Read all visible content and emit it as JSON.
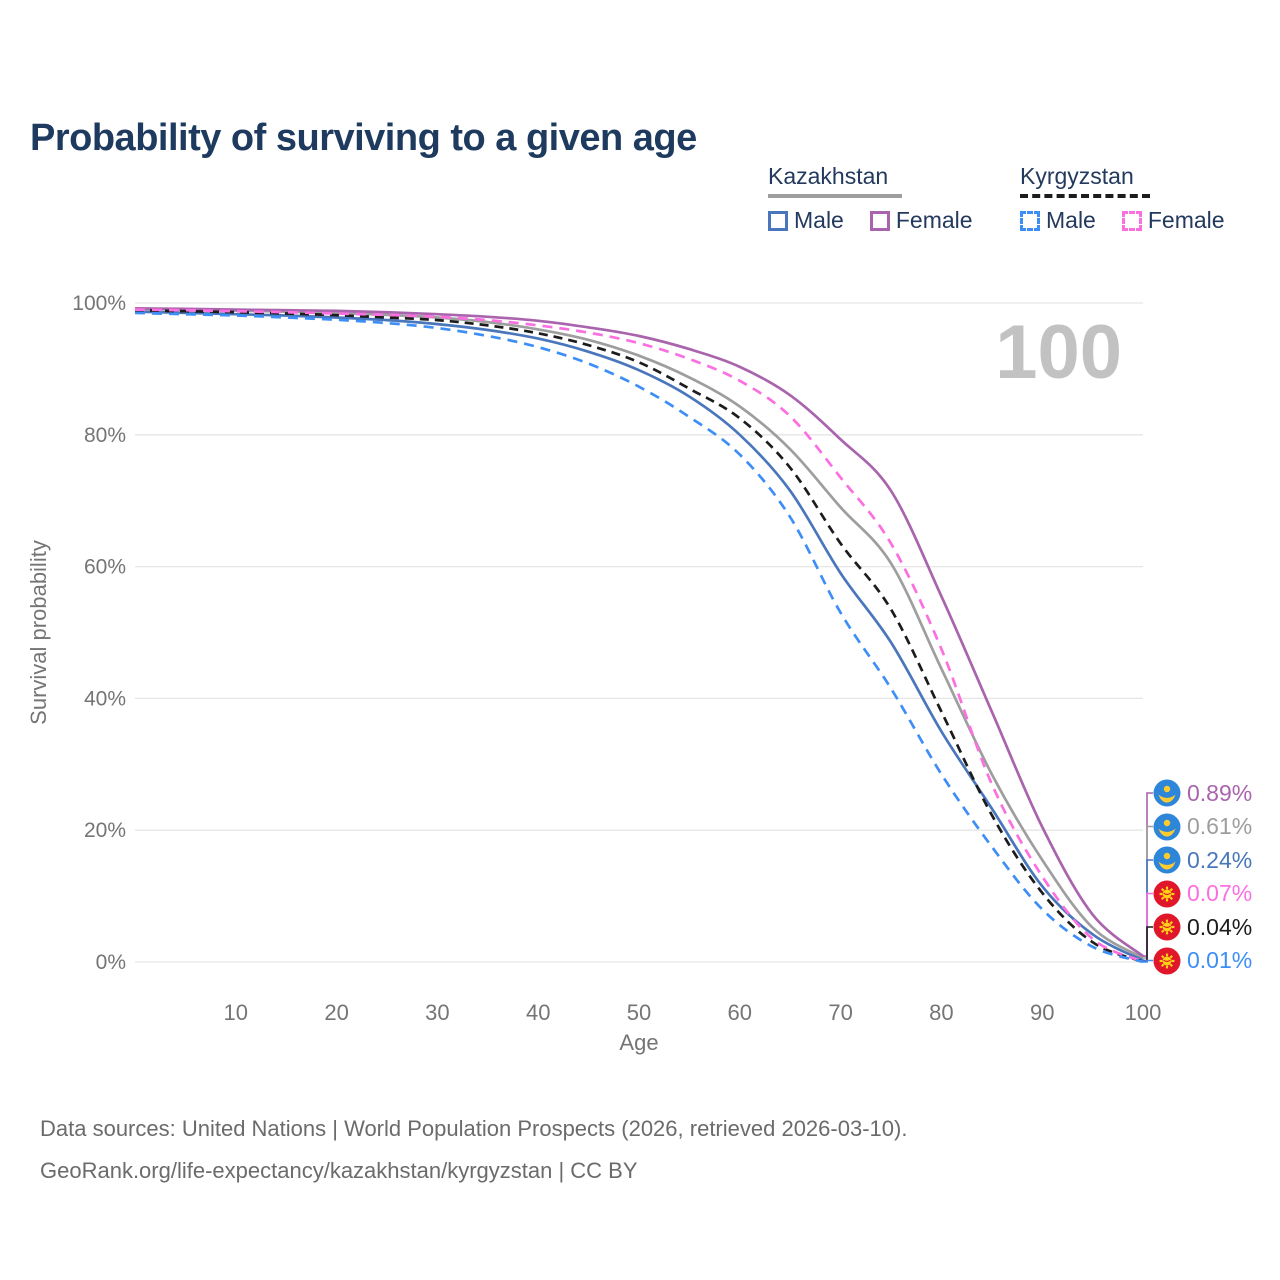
{
  "title": "Probability of surviving to a given age",
  "watermark": "100",
  "legend": {
    "groups": [
      {
        "label": "Kazakhstan",
        "underline_style": "solid",
        "underline_color": "#9e9e9e",
        "items": [
          {
            "label": "Male",
            "color": "#4a77bc",
            "dashed": false
          },
          {
            "label": "Female",
            "color": "#a964ad",
            "dashed": false
          }
        ]
      },
      {
        "label": "Kyrgyzstan",
        "underline_style": "dashed",
        "underline_color": "#1c1c1c",
        "items": [
          {
            "label": "Male",
            "color": "#3e8ef7",
            "dashed": true
          },
          {
            "label": "Female",
            "color": "#fb6fe0",
            "dashed": true
          }
        ]
      }
    ]
  },
  "axes": {
    "x_label": "Age",
    "y_label": "Survival probability",
    "x_ticks": [
      10,
      20,
      30,
      40,
      50,
      60,
      70,
      80,
      90,
      100
    ],
    "y_ticks": [
      {
        "value": 0,
        "label": "0%"
      },
      {
        "value": 20,
        "label": "20%"
      },
      {
        "value": 40,
        "label": "40%"
      },
      {
        "value": 60,
        "label": "60%"
      },
      {
        "value": 80,
        "label": "80%"
      },
      {
        "value": 100,
        "label": "100%"
      }
    ]
  },
  "end_labels": [
    {
      "series": "kz_female",
      "value": "0.89%",
      "color": "#a964ad",
      "flag": "kazakhstan"
    },
    {
      "series": "kz_all",
      "value": "0.61%",
      "color": "#9e9e9e",
      "flag": "kazakhstan"
    },
    {
      "series": "kz_male",
      "value": "0.24%",
      "color": "#4a77bc",
      "flag": "kazakhstan"
    },
    {
      "series": "kg_female",
      "value": "0.07%",
      "color": "#fb6fe0",
      "flag": "kyrgyzstan"
    },
    {
      "series": "kg_all",
      "value": "0.04%",
      "color": "#1c1c1c",
      "flag": "kyrgyzstan"
    },
    {
      "series": "kg_male",
      "value": "0.01%",
      "color": "#3e8ef7",
      "flag": "kyrgyzstan"
    }
  ],
  "flags": {
    "kazakhstan": {
      "bg": "#2e86d9",
      "emblem": "#ffcb2f"
    },
    "kyrgyzstan": {
      "bg": "#e0162b",
      "emblem": "#ffd117"
    }
  },
  "footer": {
    "line1": "Data sources: United Nations | World Population Prospects (2026, retrieved 2026-03-10).",
    "line2": "GeoRank.org/life-expectancy/kazakhstan/kyrgyzstan | CC BY"
  },
  "chart_data": {
    "type": "line",
    "title": "Probability of surviving to a given age",
    "xlabel": "Age",
    "ylabel": "Survival probability",
    "xlim": [
      0,
      100
    ],
    "ylim": [
      0,
      100
    ],
    "grid": "horizontal",
    "legend_position": "top-right",
    "x": [
      0,
      5,
      10,
      15,
      20,
      25,
      30,
      35,
      40,
      45,
      50,
      55,
      60,
      65,
      70,
      75,
      80,
      85,
      90,
      95,
      100
    ],
    "series": [
      {
        "id": "kz_female",
        "name": "Kazakhstan Female",
        "color": "#a964ad",
        "dash": null,
        "values": [
          99.2,
          99.1,
          99.0,
          98.9,
          98.8,
          98.6,
          98.3,
          97.9,
          97.3,
          96.3,
          95.0,
          93.0,
          90.3,
          86.0,
          79.3,
          71.5,
          55.5,
          38.0,
          20.5,
          7.2,
          0.89
        ]
      },
      {
        "id": "kz_all",
        "name": "Kazakhstan Both sexes",
        "color": "#9e9e9e",
        "dash": null,
        "values": [
          99.1,
          99.0,
          98.85,
          98.7,
          98.5,
          98.2,
          97.8,
          97.1,
          96.0,
          94.4,
          92.0,
          88.7,
          84.3,
          77.8,
          69.0,
          60.5,
          44.5,
          28.5,
          15.5,
          5.2,
          0.61
        ]
      },
      {
        "id": "kz_male",
        "name": "Kazakhstan Male",
        "color": "#4a77bc",
        "dash": null,
        "values": [
          98.7,
          98.5,
          98.3,
          98.1,
          97.8,
          97.4,
          96.8,
          95.9,
          94.6,
          92.6,
          89.8,
          85.8,
          80.0,
          71.5,
          59.0,
          48.5,
          35.0,
          23.3,
          11.5,
          4.2,
          0.24
        ]
      },
      {
        "id": "kg_all",
        "name": "Kyrgyzstan Both sexes",
        "color": "#1c1c1c",
        "dash": "9 6",
        "values": [
          98.9,
          98.75,
          98.6,
          98.4,
          98.15,
          97.8,
          97.4,
          96.6,
          95.4,
          93.6,
          91.0,
          87.0,
          82.5,
          75.0,
          63.5,
          53.5,
          38.0,
          22.3,
          10.5,
          3.0,
          0.04
        ]
      },
      {
        "id": "kg_female",
        "name": "Kyrgyzstan Female",
        "color": "#fb6fe0",
        "dash": "10 7",
        "values": [
          99.0,
          98.9,
          98.75,
          98.6,
          98.4,
          98.2,
          97.9,
          97.4,
          96.6,
          95.5,
          93.9,
          91.5,
          88.2,
          82.8,
          73.5,
          63.5,
          47.5,
          27.0,
          13.0,
          3.5,
          0.07
        ]
      },
      {
        "id": "kg_male",
        "name": "Kyrgyzstan Male",
        "color": "#3e8ef7",
        "dash": "10 7",
        "values": [
          98.5,
          98.3,
          98.1,
          97.8,
          97.45,
          96.95,
          96.2,
          95.0,
          93.3,
          90.8,
          87.3,
          82.7,
          77.0,
          67.5,
          53.0,
          41.5,
          28.5,
          17.5,
          8.0,
          2.3,
          0.01
        ]
      }
    ]
  }
}
